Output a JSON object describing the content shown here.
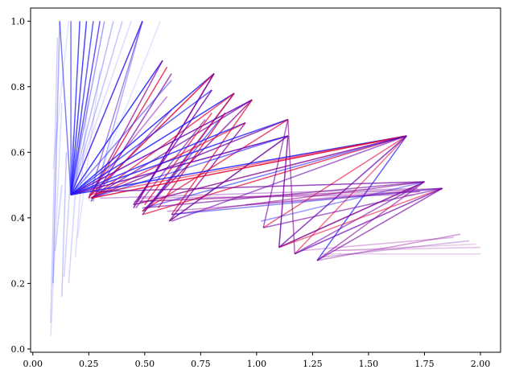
{
  "chart_data": {
    "type": "line",
    "title": "",
    "xlabel": "",
    "ylabel": "",
    "xlim": [
      -0.01,
      2.09
    ],
    "ylim": [
      -0.01,
      1.04
    ],
    "xticks": [
      0.0,
      0.25,
      0.5,
      0.75,
      1.0,
      1.25,
      1.5,
      1.75,
      2.0
    ],
    "xtick_labels": [
      "0.00",
      "0.25",
      "0.50",
      "0.75",
      "1.00",
      "1.25",
      "1.50",
      "1.75",
      "2.00"
    ],
    "yticks": [
      0.0,
      0.2,
      0.4,
      0.6,
      0.8,
      1.0
    ],
    "ytick_labels": [
      "0.0",
      "0.2",
      "0.4",
      "0.6",
      "0.8",
      "1.0"
    ],
    "grid": false,
    "legend": "none",
    "colors": {
      "blue": "#1a1aff",
      "red": "#e6002e",
      "purple": "#6a00b8"
    },
    "series": [
      {
        "x": [
          0.17,
          0.12
        ],
        "y": [
          0.47,
          1.0
        ],
        "color": "#1a1aff",
        "alpha": 0.55
      },
      {
        "x": [
          0.17,
          0.17
        ],
        "y": [
          0.47,
          1.0
        ],
        "color": "#1a1aff",
        "alpha": 0.6
      },
      {
        "x": [
          0.17,
          0.21
        ],
        "y": [
          0.47,
          1.0
        ],
        "color": "#1a1aff",
        "alpha": 0.75
      },
      {
        "x": [
          0.17,
          0.24
        ],
        "y": [
          0.47,
          1.0
        ],
        "color": "#1a1aff",
        "alpha": 0.8
      },
      {
        "x": [
          0.17,
          0.27
        ],
        "y": [
          0.47,
          1.0
        ],
        "color": "#1a1aff",
        "alpha": 0.7
      },
      {
        "x": [
          0.17,
          0.3
        ],
        "y": [
          0.47,
          1.0
        ],
        "color": "#3a1aff",
        "alpha": 0.75
      },
      {
        "x": [
          0.17,
          0.32
        ],
        "y": [
          0.47,
          1.0
        ],
        "color": "#1a1aff",
        "alpha": 0.4
      },
      {
        "x": [
          0.17,
          0.36
        ],
        "y": [
          0.47,
          1.0
        ],
        "color": "#1a1aff",
        "alpha": 0.3
      },
      {
        "x": [
          0.17,
          0.4
        ],
        "y": [
          0.47,
          1.0
        ],
        "color": "#1a1aff",
        "alpha": 0.25
      },
      {
        "x": [
          0.17,
          0.44
        ],
        "y": [
          0.47,
          1.0
        ],
        "color": "#1a1aff",
        "alpha": 0.15
      },
      {
        "x": [
          0.17,
          0.49
        ],
        "y": [
          0.47,
          1.0
        ],
        "color": "#4a14e0",
        "alpha": 0.75
      },
      {
        "x": [
          0.25,
          0.57
        ],
        "y": [
          0.45,
          1.0
        ],
        "color": "#1a1aff",
        "alpha": 0.12
      },
      {
        "x": [
          0.09,
          0.12
        ],
        "y": [
          0.2,
          1.0
        ],
        "color": "#1a1aff",
        "alpha": 0.35
      },
      {
        "x": [
          0.08,
          0.11
        ],
        "y": [
          0.08,
          0.95
        ],
        "color": "#1a1aff",
        "alpha": 0.2
      },
      {
        "x": [
          0.08,
          0.13
        ],
        "y": [
          0.04,
          0.75
        ],
        "color": "#1a1aff",
        "alpha": 0.15
      },
      {
        "x": [
          0.13,
          0.15
        ],
        "y": [
          0.16,
          0.6
        ],
        "color": "#1a1aff",
        "alpha": 0.25
      },
      {
        "x": [
          0.14,
          0.18
        ],
        "y": [
          0.22,
          0.65
        ],
        "color": "#1a1aff",
        "alpha": 0.2
      },
      {
        "x": [
          0.16,
          0.22
        ],
        "y": [
          0.2,
          0.75
        ],
        "color": "#1a1aff",
        "alpha": 0.18
      },
      {
        "x": [
          0.19,
          0.25
        ],
        "y": [
          0.28,
          0.8
        ],
        "color": "#1a1aff",
        "alpha": 0.15
      },
      {
        "x": [
          0.2,
          0.3
        ],
        "y": [
          0.34,
          0.85
        ],
        "color": "#1a1aff",
        "alpha": 0.12
      },
      {
        "x": [
          0.09,
          0.16
        ],
        "y": [
          0.55,
          1.0
        ],
        "color": "#1a1aff",
        "alpha": 0.12
      },
      {
        "x": [
          0.13,
          0.1
        ],
        "y": [
          0.5,
          0.3
        ],
        "color": "#1a1aff",
        "alpha": 0.2
      },
      {
        "x": [
          0.17,
          0.49
        ],
        "y": [
          0.47,
          1.0
        ],
        "color": "#1a1aff",
        "alpha": 0.3
      },
      {
        "x": [
          0.25,
          0.49
        ],
        "y": [
          0.46,
          1.0
        ],
        "color": "#5a10d0",
        "alpha": 0.5
      },
      {
        "x": [
          0.27,
          0.49
        ],
        "y": [
          0.45,
          1.0
        ],
        "color": "#1a1aff",
        "alpha": 0.35
      },
      {
        "x": [
          0.17,
          0.58
        ],
        "y": [
          0.47,
          0.88
        ],
        "color": "#1a1aff",
        "alpha": 0.85
      },
      {
        "x": [
          0.25,
          0.58
        ],
        "y": [
          0.46,
          0.88
        ],
        "color": "#8a0090",
        "alpha": 0.7
      },
      {
        "x": [
          0.25,
          0.6
        ],
        "y": [
          0.46,
          0.86
        ],
        "color": "#e6002e",
        "alpha": 0.75
      },
      {
        "x": [
          0.26,
          0.62
        ],
        "y": [
          0.45,
          0.84
        ],
        "color": "#7000a0",
        "alpha": 0.7
      },
      {
        "x": [
          0.17,
          0.62
        ],
        "y": [
          0.47,
          0.82
        ],
        "color": "#1a1aff",
        "alpha": 0.5
      },
      {
        "x": [
          0.27,
          0.6
        ],
        "y": [
          0.49,
          0.77
        ],
        "color": "#9000a0",
        "alpha": 0.5
      },
      {
        "x": [
          0.29,
          0.62
        ],
        "y": [
          0.48,
          0.73
        ],
        "color": "#7000a0",
        "alpha": 0.6
      },
      {
        "x": [
          0.17,
          0.81
        ],
        "y": [
          0.47,
          0.84
        ],
        "color": "#1a1aff",
        "alpha": 0.85
      },
      {
        "x": [
          0.26,
          0.81
        ],
        "y": [
          0.47,
          0.84
        ],
        "color": "#e6002e",
        "alpha": 0.85
      },
      {
        "x": [
          0.45,
          0.81
        ],
        "y": [
          0.43,
          0.84
        ],
        "color": "#7000a0",
        "alpha": 0.8
      },
      {
        "x": [
          0.47,
          0.81
        ],
        "y": [
          0.45,
          0.84
        ],
        "color": "#9000a0",
        "alpha": 0.7
      },
      {
        "x": [
          0.17,
          0.9
        ],
        "y": [
          0.47,
          0.78
        ],
        "color": "#1a1aff",
        "alpha": 0.85
      },
      {
        "x": [
          0.26,
          0.9
        ],
        "y": [
          0.46,
          0.78
        ],
        "color": "#e6002e",
        "alpha": 0.7
      },
      {
        "x": [
          0.49,
          0.9
        ],
        "y": [
          0.41,
          0.78
        ],
        "color": "#7000a0",
        "alpha": 0.75
      },
      {
        "x": [
          0.52,
          0.9
        ],
        "y": [
          0.43,
          0.78
        ],
        "color": "#e6002e",
        "alpha": 0.6
      },
      {
        "x": [
          0.17,
          0.98
        ],
        "y": [
          0.47,
          0.76
        ],
        "color": "#6a00b8",
        "alpha": 0.85
      },
      {
        "x": [
          0.26,
          0.98
        ],
        "y": [
          0.46,
          0.76
        ],
        "color": "#7000a0",
        "alpha": 0.7
      },
      {
        "x": [
          0.49,
          0.98
        ],
        "y": [
          0.42,
          0.76
        ],
        "color": "#8a0090",
        "alpha": 0.75
      },
      {
        "x": [
          0.62,
          0.98
        ],
        "y": [
          0.41,
          0.76
        ],
        "color": "#e6002e",
        "alpha": 0.7
      },
      {
        "x": [
          0.17,
          0.8
        ],
        "y": [
          0.47,
          0.79
        ],
        "color": "#1a1aff",
        "alpha": 0.7
      },
      {
        "x": [
          0.45,
          0.8
        ],
        "y": [
          0.44,
          0.79
        ],
        "color": "#6a00b8",
        "alpha": 0.8
      },
      {
        "x": [
          0.5,
          0.8
        ],
        "y": [
          0.44,
          0.72
        ],
        "color": "#e6002e",
        "alpha": 0.7
      },
      {
        "x": [
          0.46,
          0.77
        ],
        "y": [
          0.43,
          0.7
        ],
        "color": "#7000a0",
        "alpha": 0.6
      },
      {
        "x": [
          0.5,
          0.86
        ],
        "y": [
          0.42,
          0.72
        ],
        "color": "#1a1aff",
        "alpha": 0.6
      },
      {
        "x": [
          0.56,
          0.86
        ],
        "y": [
          0.43,
          0.72
        ],
        "color": "#e6002e",
        "alpha": 0.75
      },
      {
        "x": [
          0.17,
          0.95
        ],
        "y": [
          0.47,
          0.69
        ],
        "color": "#1a1aff",
        "alpha": 0.8
      },
      {
        "x": [
          0.26,
          0.95
        ],
        "y": [
          0.46,
          0.69
        ],
        "color": "#e6002e",
        "alpha": 0.65
      },
      {
        "x": [
          0.61,
          0.95
        ],
        "y": [
          0.39,
          0.69
        ],
        "color": "#8a0090",
        "alpha": 0.75
      },
      {
        "x": [
          0.17,
          1.14
        ],
        "y": [
          0.47,
          0.7
        ],
        "color": "#1a1aff",
        "alpha": 0.8
      },
      {
        "x": [
          0.26,
          1.14
        ],
        "y": [
          0.46,
          0.7
        ],
        "color": "#7000a0",
        "alpha": 0.75
      },
      {
        "x": [
          0.49,
          1.14
        ],
        "y": [
          0.42,
          0.7
        ],
        "color": "#e6002e",
        "alpha": 0.7
      },
      {
        "x": [
          0.17,
          1.14
        ],
        "y": [
          0.47,
          0.65
        ],
        "color": "#6a00b8",
        "alpha": 0.85
      },
      {
        "x": [
          0.26,
          1.14
        ],
        "y": [
          0.46,
          0.65
        ],
        "color": "#1a1aff",
        "alpha": 0.6
      },
      {
        "x": [
          0.61,
          1.14
        ],
        "y": [
          0.39,
          0.65
        ],
        "color": "#7000a0",
        "alpha": 0.85
      },
      {
        "x": [
          0.17,
          1.67
        ],
        "y": [
          0.47,
          0.65
        ],
        "color": "#1a1aff",
        "alpha": 0.85
      },
      {
        "x": [
          0.26,
          1.67
        ],
        "y": [
          0.46,
          0.65
        ],
        "color": "#e6002e",
        "alpha": 0.85
      },
      {
        "x": [
          0.25,
          1.67
        ],
        "y": [
          0.47,
          0.65
        ],
        "color": "#e6002e",
        "alpha": 0.55
      },
      {
        "x": [
          0.45,
          1.67
        ],
        "y": [
          0.44,
          0.65
        ],
        "color": "#8a0090",
        "alpha": 0.8
      },
      {
        "x": [
          0.49,
          1.67
        ],
        "y": [
          0.41,
          0.65
        ],
        "color": "#e6002e",
        "alpha": 0.7
      },
      {
        "x": [
          0.5,
          1.67
        ],
        "y": [
          0.43,
          0.65
        ],
        "color": "#1a1aff",
        "alpha": 0.55
      },
      {
        "x": [
          0.62,
          1.67
        ],
        "y": [
          0.39,
          0.65
        ],
        "color": "#6a00b8",
        "alpha": 0.6
      },
      {
        "x": [
          1.03,
          1.67
        ],
        "y": [
          0.37,
          0.65
        ],
        "color": "#e6002e",
        "alpha": 0.6
      },
      {
        "x": [
          1.1,
          1.67
        ],
        "y": [
          0.31,
          0.65
        ],
        "color": "#6a00b8",
        "alpha": 0.75
      },
      {
        "x": [
          1.17,
          1.67
        ],
        "y": [
          0.29,
          0.65
        ],
        "color": "#e6002e",
        "alpha": 0.55
      },
      {
        "x": [
          1.27,
          1.67
        ],
        "y": [
          0.27,
          0.65
        ],
        "color": "#1a1aff",
        "alpha": 0.7
      },
      {
        "x": [
          0.28,
          1.75
        ],
        "y": [
          0.48,
          0.51
        ],
        "color": "#7000a0",
        "alpha": 0.7
      },
      {
        "x": [
          0.49,
          1.75
        ],
        "y": [
          0.43,
          0.51
        ],
        "color": "#7000a0",
        "alpha": 0.6
      },
      {
        "x": [
          0.62,
          1.75
        ],
        "y": [
          0.41,
          0.51
        ],
        "color": "#8a0090",
        "alpha": 0.55
      },
      {
        "x": [
          1.02,
          1.75
        ],
        "y": [
          0.39,
          0.51
        ],
        "color": "#1a1aff",
        "alpha": 0.45
      },
      {
        "x": [
          1.1,
          1.75
        ],
        "y": [
          0.31,
          0.51
        ],
        "color": "#7000a0",
        "alpha": 0.6
      },
      {
        "x": [
          1.17,
          1.75
        ],
        "y": [
          0.29,
          0.51
        ],
        "color": "#6a00b8",
        "alpha": 0.6
      },
      {
        "x": [
          1.27,
          1.75
        ],
        "y": [
          0.27,
          0.51
        ],
        "color": "#8a0090",
        "alpha": 0.6
      },
      {
        "x": [
          0.48,
          1.83
        ],
        "y": [
          0.45,
          0.49
        ],
        "color": "#8a0090",
        "alpha": 0.5
      },
      {
        "x": [
          0.62,
          1.83
        ],
        "y": [
          0.41,
          0.49
        ],
        "color": "#1a1aff",
        "alpha": 0.5
      },
      {
        "x": [
          0.95,
          1.83
        ],
        "y": [
          0.44,
          0.49
        ],
        "color": "#9000a0",
        "alpha": 0.45
      },
      {
        "x": [
          1.03,
          1.83
        ],
        "y": [
          0.37,
          0.49
        ],
        "color": "#7000a0",
        "alpha": 0.6
      },
      {
        "x": [
          1.1,
          1.83
        ],
        "y": [
          0.31,
          0.49
        ],
        "color": "#e6002e",
        "alpha": 0.55
      },
      {
        "x": [
          1.17,
          1.83
        ],
        "y": [
          0.29,
          0.49
        ],
        "color": "#6a00b8",
        "alpha": 0.7
      },
      {
        "x": [
          1.27,
          1.83
        ],
        "y": [
          0.27,
          0.49
        ],
        "color": "#7000a0",
        "alpha": 0.65
      },
      {
        "x": [
          1.1,
          1.72
        ],
        "y": [
          0.31,
          0.5
        ],
        "color": "#8a0090",
        "alpha": 0.6
      },
      {
        "x": [
          0.6,
          1.73
        ],
        "y": [
          0.42,
          0.48
        ],
        "color": "#7000a0",
        "alpha": 0.4
      },
      {
        "x": [
          0.48,
          1.7
        ],
        "y": [
          0.46,
          0.47
        ],
        "color": "#9000a0",
        "alpha": 0.35
      },
      {
        "x": [
          0.3,
          1.72
        ],
        "y": [
          0.46,
          0.49
        ],
        "color": "#7000a0",
        "alpha": 0.35
      },
      {
        "x": [
          0.45,
          1.73
        ],
        "y": [
          0.45,
          0.48
        ],
        "color": "#8a0090",
        "alpha": 0.3
      },
      {
        "x": [
          1.27,
          1.91
        ],
        "y": [
          0.27,
          0.35
        ],
        "color": "#8a0090",
        "alpha": 0.4
      },
      {
        "x": [
          1.2,
          1.88
        ],
        "y": [
          0.3,
          0.34
        ],
        "color": "#9000a0",
        "alpha": 0.3
      },
      {
        "x": [
          1.29,
          1.95
        ],
        "y": [
          0.28,
          0.33
        ],
        "color": "#7000a0",
        "alpha": 0.3
      },
      {
        "x": [
          1.33,
          2.0
        ],
        "y": [
          0.3,
          0.31
        ],
        "color": "#9000a0",
        "alpha": 0.25
      },
      {
        "x": [
          1.29,
          2.0
        ],
        "y": [
          0.29,
          0.29
        ],
        "color": "#9000a0",
        "alpha": 0.2
      },
      {
        "x": [
          1.35,
          1.98
        ],
        "y": [
          0.3,
          0.32
        ],
        "color": "#8a0090",
        "alpha": 0.2
      },
      {
        "x": [
          1.1,
          1.14
        ],
        "y": [
          0.31,
          0.65
        ],
        "color": "#7000a0",
        "alpha": 0.8
      },
      {
        "x": [
          1.17,
          1.14
        ],
        "y": [
          0.29,
          0.7
        ],
        "color": "#8a0090",
        "alpha": 0.6
      },
      {
        "x": [
          1.03,
          1.14
        ],
        "y": [
          0.37,
          0.7
        ],
        "color": "#7000a0",
        "alpha": 0.6
      }
    ]
  }
}
